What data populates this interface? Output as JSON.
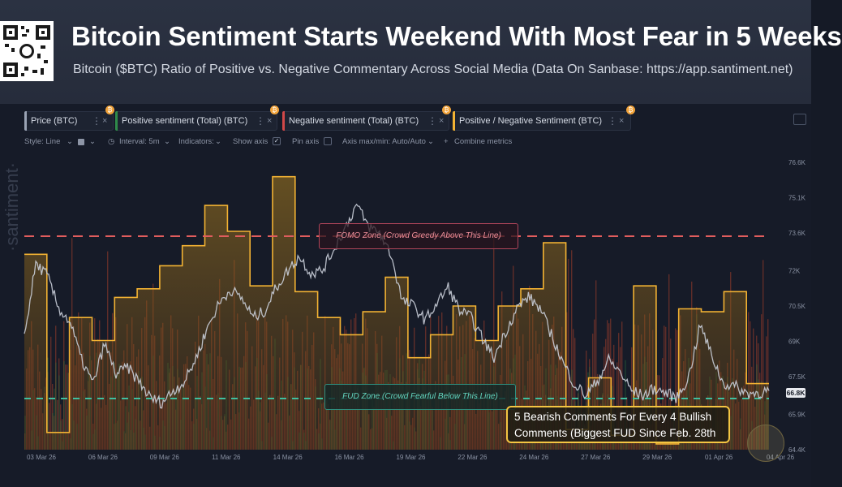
{
  "header": {
    "title": "Bitcoin Sentiment Starts Weekend With Most Fear in 5 Weeks",
    "subtitle": "Bitcoin ($BTC) Ratio of Positive vs. Negative Commentary Across Social Media (Data On Sanbase: https://app.santiment.net)"
  },
  "metrics": [
    {
      "label": "Price (BTC)",
      "color": "#9aa3b4"
    },
    {
      "label": "Positive sentiment (Total) (BTC)",
      "color": "#2f8a4a"
    },
    {
      "label": "Negative sentiment (Total) (BTC)",
      "color": "#d04848"
    },
    {
      "label": "Positive / Negative Sentiment (BTC)",
      "color": "#f2b233"
    }
  ],
  "toolbar": {
    "style": "Style: Line",
    "interval": "Interval: 5m",
    "indicators": "Indicators:",
    "show_axis": "Show axis",
    "pin_axis": "Pin axis",
    "axis_maxmin": "Axis max/min: Auto/Auto",
    "combine": "Combine metrics"
  },
  "watermark": "·santiment·",
  "annotations": {
    "fomo": "FOMO Zone (Crowd Greedy Above This Line)",
    "fud": "FUD Zone (Crowd Fearful Below This Line)",
    "callout_line1": "5 Bearish Comments For Every 4 Bullish",
    "callout_line2": "Comments (Biggest FUD Since Feb. 28th"
  },
  "chart_data": {
    "type": "line",
    "xlabel": "",
    "ylabel": "",
    "x_ticks": [
      "03 Mar 26",
      "06 Mar 26",
      "09 Mar 26",
      "11 Mar 26",
      "14 Mar 26",
      "16 Mar 26",
      "19 Mar 26",
      "22 Mar 26",
      "24 Mar 26",
      "27 Mar 26",
      "29 Mar 26",
      "01 Apr 26",
      "04 Apr 26"
    ],
    "y_right_ticks": [
      76600,
      75100,
      73600,
      72000,
      70500,
      69000,
      67500,
      65900,
      64400
    ],
    "ylim": [
      64400,
      76600
    ],
    "current_price_label": "66.8K",
    "sentiment_ratio_steps": {
      "name": "Positive / Negative Sentiment (BTC)",
      "relative_levels": [
        0.68,
        0.06,
        0.46,
        0.38,
        0.53,
        0.56,
        0.64,
        0.71,
        0.85,
        0.76,
        0.57,
        0.95,
        0.55,
        0.46,
        0.4,
        0.48,
        0.6,
        0.32,
        0.4,
        0.5,
        0.38,
        0.5,
        0.56,
        0.72,
        0.07,
        0.25,
        0.05,
        0.57,
        0.02,
        0.49,
        0.48,
        0.55,
        0.23
      ]
    },
    "fomo_level_relative": 0.75,
    "fud_level_relative": 0.09,
    "price_series": {
      "name": "Price (BTC)",
      "values": [
        69200,
        72300,
        71800,
        70400,
        69800,
        68200,
        67200,
        68900,
        67600,
        67900,
        67300,
        66600,
        66400,
        66900,
        67300,
        68300,
        69600,
        70600,
        71200,
        70800,
        70000,
        70300,
        71300,
        72000,
        72600,
        71900,
        72000,
        72900,
        73800,
        74800,
        73900,
        73600,
        72700,
        70700,
        70500,
        69900,
        70600,
        71300,
        70300,
        70000,
        69100,
        68300,
        69400,
        70400,
        70900,
        70400,
        69300,
        68100,
        67200,
        66700,
        67300,
        68200,
        67700,
        66900,
        66700,
        67000,
        66800,
        66600,
        67500,
        69700,
        68400,
        67200,
        67100,
        66800,
        66800,
        66900
      ]
    }
  }
}
